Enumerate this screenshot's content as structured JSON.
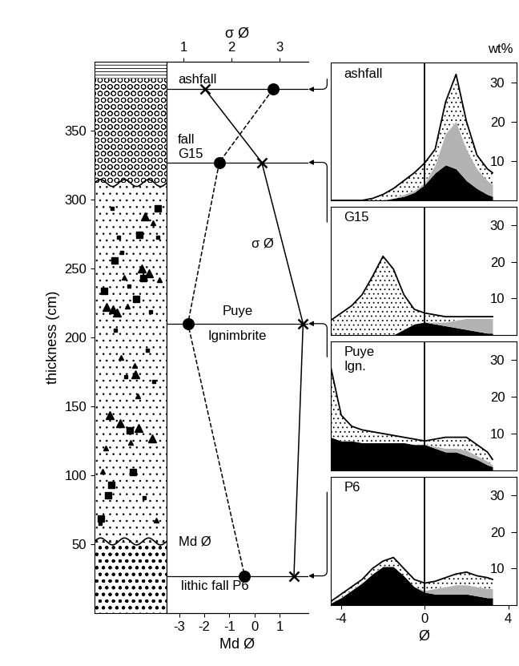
{
  "chart_data": [
    {
      "type": "line",
      "ylabel": "thickness (cm)",
      "ylim": [
        0,
        400
      ],
      "yticks": [
        50,
        100,
        150,
        200,
        250,
        300,
        350
      ],
      "xlabel": "Md Ø",
      "xlim": [
        -3.5,
        2.15
      ],
      "xticks": [
        -3,
        -2,
        -1,
        0,
        1
      ],
      "x2label": "σ Ø",
      "x2lim": [
        0.65,
        3.6
      ],
      "x2ticks": [
        1,
        2,
        3
      ],
      "layers": [
        {
          "bottom": 0,
          "top": 52
        },
        {
          "bottom": 52,
          "top": 312
        },
        {
          "bottom": 312,
          "top": 388
        },
        {
          "bottom": 388,
          "top": 400
        }
      ],
      "samples": [
        {
          "label": "ashfall",
          "y": 380
        },
        {
          "label": "fall\nG15",
          "y": 327
        },
        {
          "label": "Puye\nIgnimbrite",
          "y": 210
        },
        {
          "label": "lithic fall P6",
          "y": 27
        }
      ],
      "series": [
        {
          "name": "σ Ø",
          "axis": "x2",
          "x": [
            1.45,
            2.63,
            3.49,
            3.3
          ],
          "y": [
            380,
            327,
            210,
            27
          ],
          "marker": "x",
          "line_style": "solid",
          "color": "#000000"
        },
        {
          "name": "Md Ø",
          "x": [
            0.74,
            -1.4,
            -2.65,
            -0.39
          ],
          "y": [
            380,
            327,
            210,
            27
          ],
          "marker": "o",
          "line_style": "dashed",
          "color": "#000000"
        }
      ]
    },
    {
      "type": "area",
      "stacked": true,
      "title": "ashfall",
      "ylabel": "wt%",
      "tick_labels": "y",
      "x": [
        -4.5,
        -4,
        -3.5,
        -3,
        -2.5,
        -2,
        -1.5,
        -1,
        -0.5,
        0,
        0.5,
        1,
        1.5,
        2,
        2.5,
        3,
        3.25
      ],
      "xlim": [
        -4.5,
        4.4
      ],
      "ylim": [
        0,
        35
      ],
      "yticks": [
        10,
        20,
        30
      ],
      "reference_x": 0,
      "series": [
        {
          "color": "#000000",
          "values": [
            0,
            0,
            0,
            0,
            0,
            0,
            0.5,
            1,
            2,
            4,
            7,
            9,
            8,
            5,
            3,
            1.5,
            1
          ]
        },
        {
          "color": "#b3b3b3",
          "values": [
            0,
            0,
            0,
            0,
            0,
            0,
            0,
            0.5,
            0.5,
            0.5,
            2,
            8,
            12,
            8,
            5,
            3.5,
            3
          ]
        },
        {
          "color": "#ffffff",
          "values": [
            0,
            0,
            0,
            0,
            0.5,
            1.5,
            2.5,
            3.5,
            4.5,
            5,
            4,
            8,
            12,
            7,
            3.5,
            3,
            3
          ]
        }
      ]
    },
    {
      "type": "area",
      "stacked": true,
      "title": "G15",
      "tick_labels": "y",
      "x": [
        -4.5,
        -4,
        -3.5,
        -3,
        -2.5,
        -2,
        -1.5,
        -1,
        -0.5,
        0,
        0.5,
        1,
        1.5,
        2,
        2.5,
        3,
        3.25
      ],
      "xlim": [
        -4.5,
        4.4
      ],
      "ylim": [
        0,
        35
      ],
      "yticks": [
        10,
        20,
        30
      ],
      "reference_x": 0,
      "series": [
        {
          "color": "#000000",
          "values": [
            0,
            0,
            0,
            0,
            0,
            0,
            0,
            1.5,
            3,
            3.5,
            3,
            2.5,
            2,
            1.5,
            1,
            0.5,
            0.5
          ]
        },
        {
          "color": "#b3b3b3",
          "values": [
            0,
            0,
            0,
            0,
            0,
            0,
            0,
            0,
            0,
            0,
            0.5,
            1,
            2,
            3,
            3.5,
            4,
            4
          ]
        },
        {
          "color": "#ffffff",
          "values": [
            4,
            6,
            8,
            11,
            16,
            21.5,
            18,
            9.5,
            4,
            2.5,
            2,
            1.5,
            1,
            0.5,
            0.5,
            0.5,
            0.5
          ]
        }
      ]
    },
    {
      "type": "area",
      "stacked": true,
      "title": "Puye\nIgn.",
      "tick_labels": "y",
      "x": [
        -4.5,
        -4,
        -3.5,
        -3,
        -2.5,
        -2,
        -1.5,
        -1,
        -0.5,
        0,
        0.5,
        1,
        1.5,
        2,
        2.5,
        3,
        3.25
      ],
      "xlim": [
        -4.5,
        4.4
      ],
      "ylim": [
        0,
        35
      ],
      "yticks": [
        10,
        20,
        30
      ],
      "reference_x": 0,
      "series": [
        {
          "color": "#000000",
          "values": [
            9,
            8,
            8,
            7.5,
            7.5,
            7.5,
            7.5,
            7.5,
            7,
            7,
            6,
            5,
            5,
            4,
            3,
            1.5,
            1
          ]
        },
        {
          "color": "#b3b3b3",
          "values": [
            0,
            0,
            0,
            0,
            0,
            0,
            0,
            0,
            0,
            0,
            0.5,
            1,
            1,
            1.5,
            1,
            1,
            0.5
          ]
        },
        {
          "color": "#ffffff",
          "values": [
            19,
            7,
            4,
            3.5,
            3,
            2.5,
            2,
            1.5,
            1.5,
            1,
            2,
            3,
            3,
            3.5,
            3,
            2.5,
            1.5
          ]
        }
      ]
    },
    {
      "type": "area",
      "stacked": true,
      "title": "P6",
      "xlabel": "Ø",
      "x": [
        -4.5,
        -4,
        -3.5,
        -3,
        -2.5,
        -2,
        -1.5,
        -1,
        -0.5,
        0,
        0.5,
        1,
        1.5,
        2,
        2.5,
        3,
        3.25
      ],
      "xlim": [
        -4.5,
        4.4
      ],
      "xticks": [
        -4,
        0,
        4
      ],
      "ylim": [
        0,
        35
      ],
      "yticks": [
        10,
        20,
        30
      ],
      "reference_x": 0,
      "series": [
        {
          "color": "#000000",
          "values": [
            0.5,
            2,
            4,
            6,
            8.5,
            10.5,
            10.5,
            8,
            5,
            3.5,
            3,
            3,
            3,
            3,
            2.5,
            2,
            2
          ]
        },
        {
          "color": "#b3b3b3",
          "values": [
            0,
            0,
            0,
            0,
            0,
            0,
            0,
            0,
            0,
            0.5,
            1.5,
            2,
            2.5,
            2.5,
            2.5,
            2.5,
            2.5
          ]
        },
        {
          "color": "#ffffff",
          "values": [
            0.5,
            1,
            1,
            1,
            1.5,
            1.5,
            2.5,
            2,
            2,
            2,
            2,
            2.5,
            3,
            3.5,
            3,
            3,
            2.5
          ]
        }
      ]
    }
  ]
}
